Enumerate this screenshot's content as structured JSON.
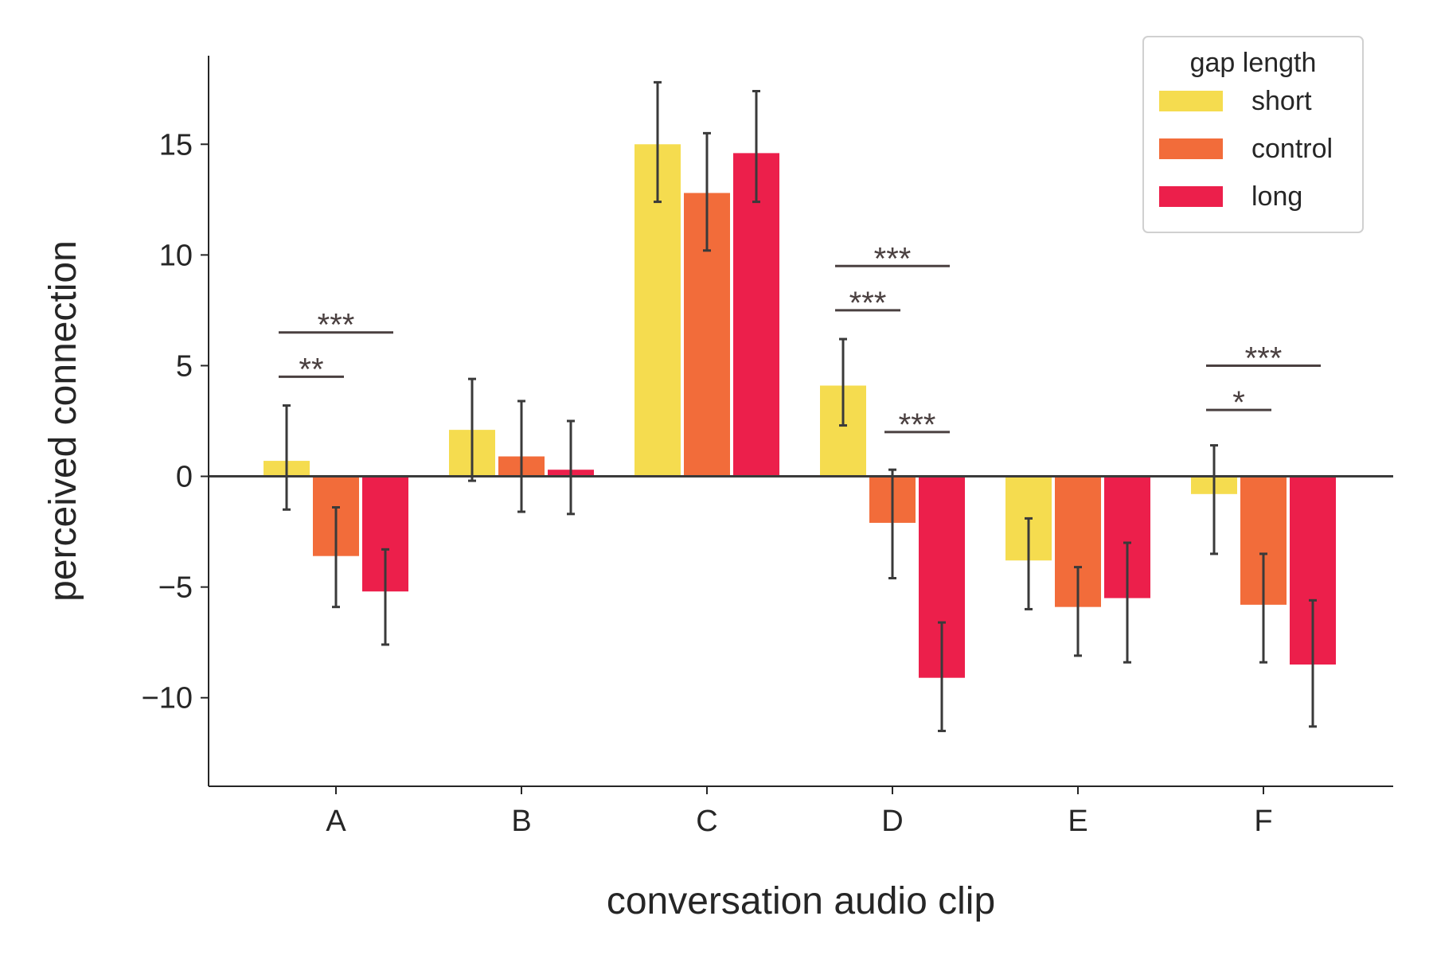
{
  "chart_data": {
    "type": "bar",
    "xlabel": "conversation audio clip",
    "ylabel": "perceived connection",
    "categories": [
      "A",
      "B",
      "C",
      "D",
      "E",
      "F"
    ],
    "ylim": [
      -14,
      19
    ],
    "yticks": [
      -10,
      -5,
      0,
      5,
      10,
      15
    ],
    "ytick_labels": [
      "−10",
      "−5",
      "0",
      "5",
      "10",
      "15"
    ],
    "zero_line": true,
    "grid": false,
    "legend": {
      "title": "gap length",
      "position": "top-right"
    },
    "series": [
      {
        "name": "short",
        "color": "#f5dc4f",
        "values": [
          0.7,
          2.1,
          15.0,
          4.1,
          -3.8,
          -0.8
        ],
        "err_low": [
          -1.5,
          -0.2,
          12.4,
          2.3,
          -6.0,
          -3.5
        ],
        "err_high": [
          3.2,
          4.4,
          17.8,
          6.2,
          -1.9,
          1.4
        ]
      },
      {
        "name": "control",
        "color": "#f26c3a",
        "values": [
          -3.6,
          0.9,
          12.8,
          -2.1,
          -5.9,
          -5.8
        ],
        "err_low": [
          -5.9,
          -1.6,
          10.2,
          -4.6,
          -8.1,
          -8.4
        ],
        "err_high": [
          -1.4,
          3.4,
          15.5,
          0.3,
          -4.1,
          -3.5
        ]
      },
      {
        "name": "long",
        "color": "#ec1f4b",
        "values": [
          -5.2,
          0.3,
          14.6,
          -9.1,
          -5.5,
          -8.5
        ],
        "err_low": [
          -7.6,
          -1.7,
          12.4,
          -11.5,
          -8.4,
          -11.3
        ],
        "err_high": [
          -3.3,
          2.5,
          17.4,
          -6.6,
          -3.0,
          -5.6
        ]
      }
    ],
    "significance": [
      {
        "category": "A",
        "from": "short",
        "to": "control",
        "y": 4.5,
        "label": "**"
      },
      {
        "category": "A",
        "from": "short",
        "to": "long",
        "y": 6.5,
        "label": "***"
      },
      {
        "category": "D",
        "from": "short",
        "to": "control",
        "y": 7.5,
        "label": "***"
      },
      {
        "category": "D",
        "from": "short",
        "to": "long",
        "y": 9.5,
        "label": "***"
      },
      {
        "category": "D",
        "from": "control",
        "to": "long",
        "y": 2.0,
        "label": "***"
      },
      {
        "category": "F",
        "from": "short",
        "to": "control",
        "y": 3.0,
        "label": "*"
      },
      {
        "category": "F",
        "from": "short",
        "to": "long",
        "y": 5.0,
        "label": "***"
      }
    ]
  }
}
